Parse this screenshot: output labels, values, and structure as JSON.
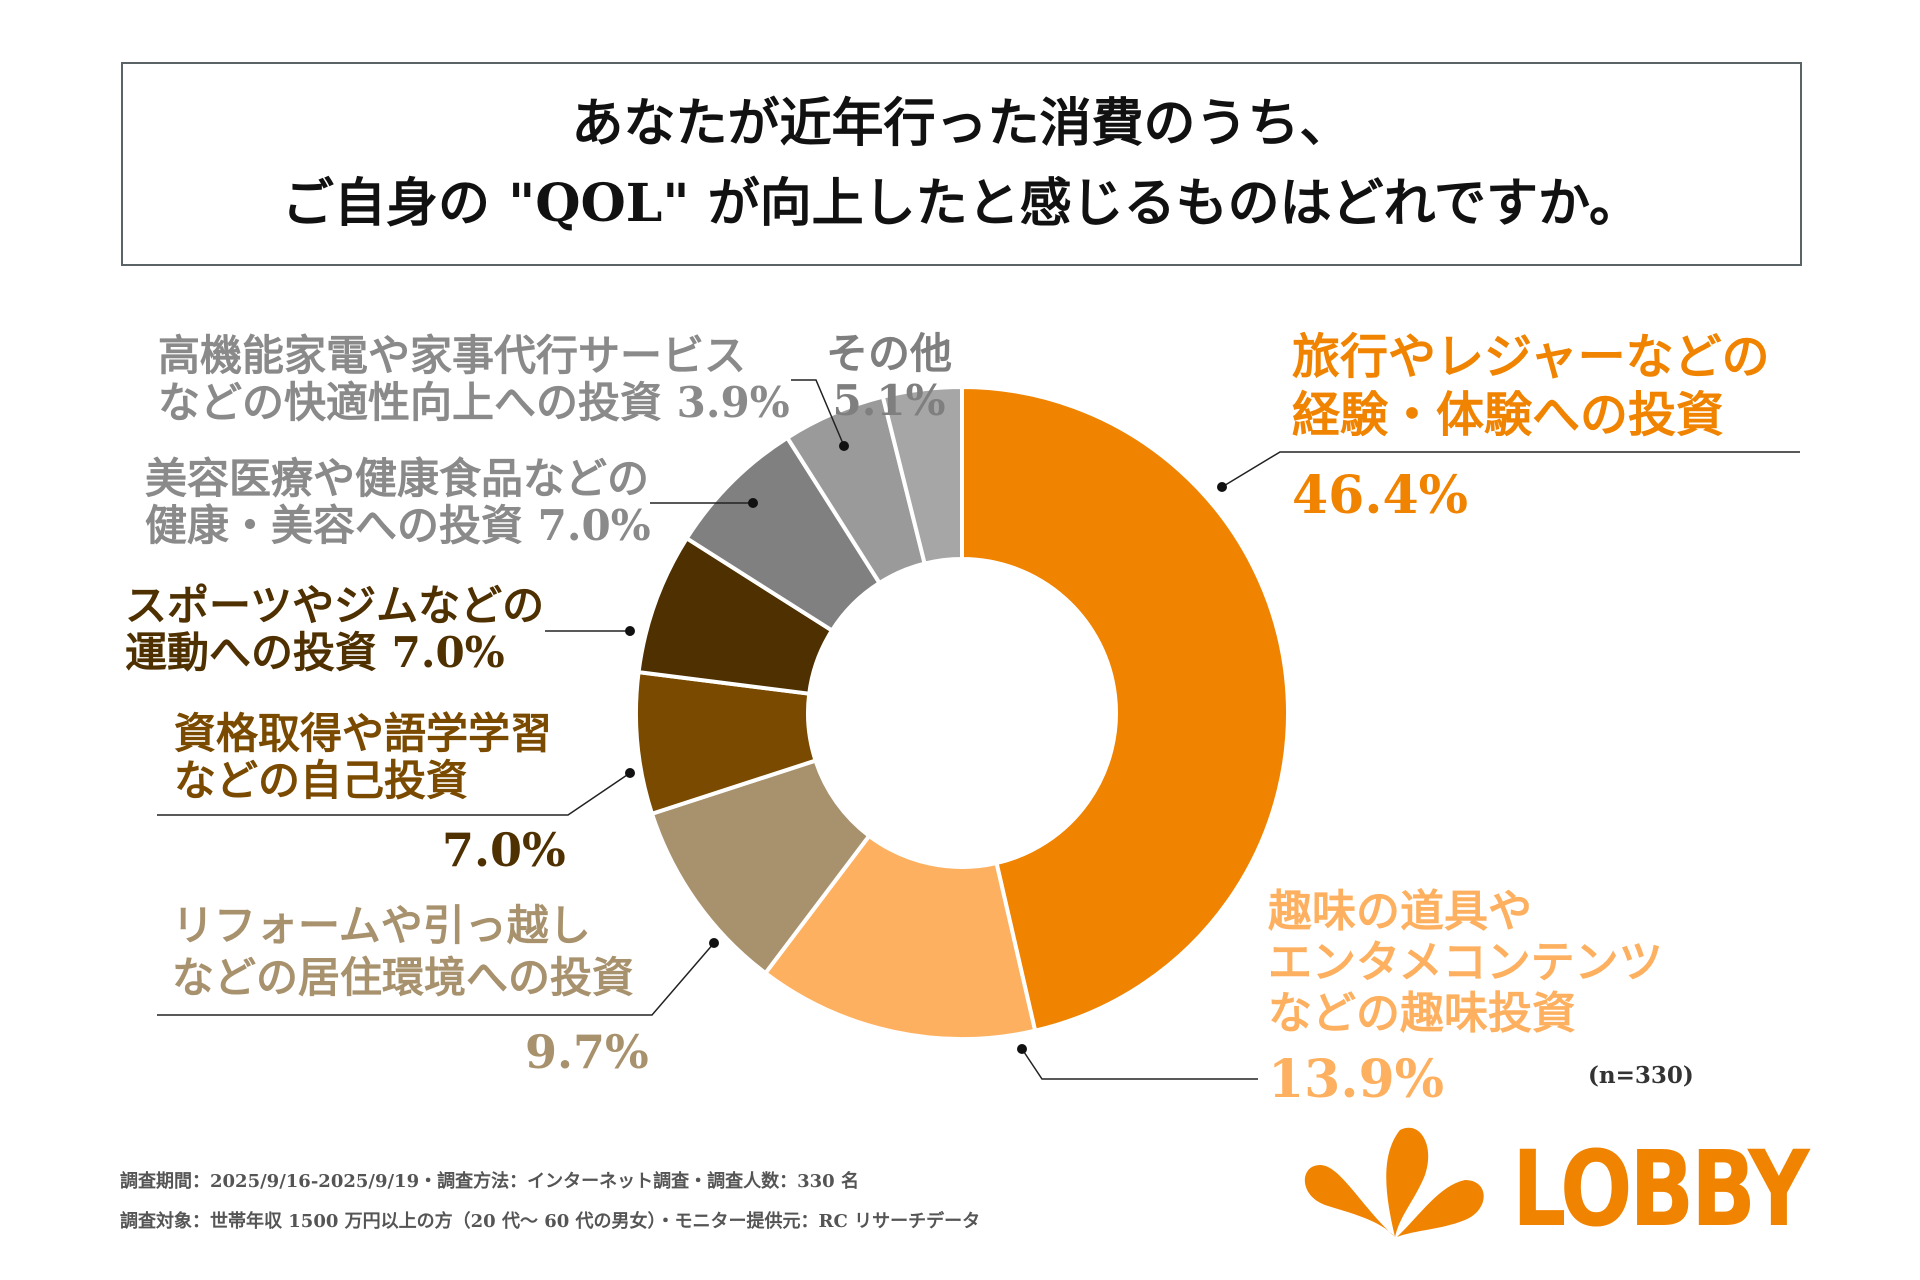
{
  "title": {
    "line1": "あなたが近年行った消費のうち、",
    "line2": "ご自身の \"QOL\" が向上したと感じるものはどれですか。"
  },
  "chart_data": {
    "type": "pie",
    "donut": true,
    "start": "top, clockwise",
    "categories": [
      "旅行やレジャーなどの経験・体験への投資",
      "趣味の道具やエンタメコンテンツなどの趣味投資",
      "リフォームや引っ越しなどの居住環境への投資",
      "資格取得や語学学習などの自己投資",
      "スポーツやジムなどの運動への投資",
      "美容医療や健康食品などの健康・美容への投資",
      "その他",
      "高機能家電や家事代行サービスなどの快適性向上への投資"
    ],
    "values": [
      46.4,
      13.9,
      9.7,
      7.0,
      7.0,
      7.0,
      5.1,
      3.9
    ],
    "colors": [
      "#F08300",
      "#FDB160",
      "#A8926E",
      "#7A4A00",
      "#4F3000",
      "#808080",
      "#9A9A9A",
      "#A6A6A6"
    ],
    "labels": [
      {
        "lines": [
          "旅行やレジャーなどの",
          "経験・体験への投資"
        ],
        "value_text": "46.4%"
      },
      {
        "lines": [
          "趣味の道具や",
          "エンタメコンテンツ",
          "などの趣味投資"
        ],
        "value_text": "13.9%"
      },
      {
        "lines": [
          "リフォームや引っ越し",
          "などの居住環境への投資"
        ],
        "value_text": "9.7%"
      },
      {
        "lines": [
          "資格取得や語学学習",
          "などの自己投資"
        ],
        "value_text": "7.0%"
      },
      {
        "lines": [
          "スポーツやジムなどの",
          "運動への投資"
        ],
        "value_text": "7.0%"
      },
      {
        "lines": [
          "美容医療や健康食品などの",
          "健康・美容への投資"
        ],
        "value_text": "7.0%"
      },
      {
        "lines": [
          "その他"
        ],
        "value_text": "5.1%"
      },
      {
        "lines": [
          "高機能家電や家事代行サービス",
          "などの快適性向上への投資"
        ],
        "value_text": "3.9%"
      }
    ],
    "sample_note": "(n=330)"
  },
  "footer": {
    "line1": "調査期間：2025/9/16-2025/9/19・調査方法：インターネット調査・調査人数：330 名",
    "line2": "調査対象：世帯年収 1500 万円以上の方（20 代〜 60 代の男女）・モニター提供元：RC リサーチデータ"
  },
  "logo": {
    "text": "LOBBY",
    "color": "#F08300"
  }
}
